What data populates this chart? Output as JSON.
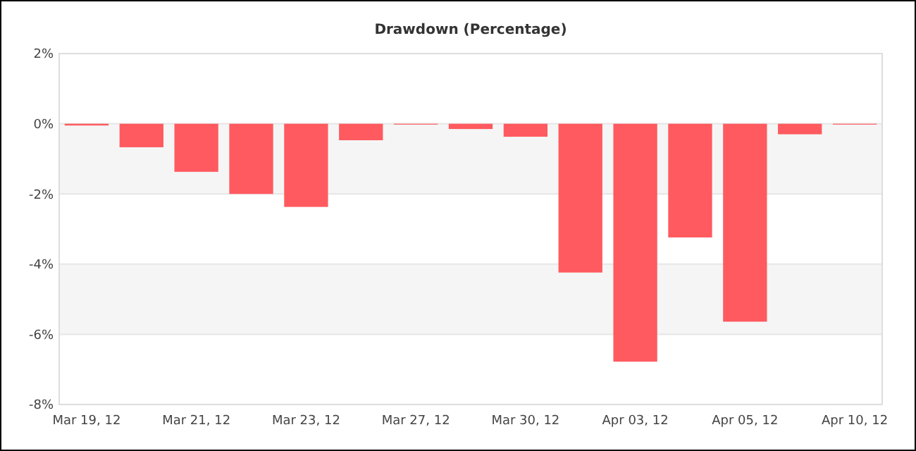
{
  "chart_data": {
    "type": "bar",
    "title": "Drawdown (Percentage)",
    "categories": [
      "Mar 19, 12",
      null,
      "Mar 21, 12",
      null,
      "Mar 23, 12",
      null,
      "Mar 27, 12",
      null,
      "Mar 30, 12",
      null,
      "Apr 03, 12",
      null,
      "Apr 05, 12",
      null,
      "Apr 10, 12"
    ],
    "values": [
      -0.05,
      -0.67,
      -1.37,
      -2.0,
      -2.37,
      -0.47,
      0,
      -0.15,
      -0.37,
      -4.24,
      -6.78,
      -3.24,
      -5.64,
      -0.3,
      0
    ],
    "color": "#ff5a5f",
    "ylim": [
      -8,
      2
    ],
    "yticks": [
      {
        "value": 2,
        "label": "2%"
      },
      {
        "value": 0,
        "label": "0%"
      },
      {
        "value": -2,
        "label": "-2%"
      },
      {
        "value": -4,
        "label": "-4%"
      },
      {
        "value": -6,
        "label": "-6%"
      },
      {
        "value": -8,
        "label": "-8%"
      }
    ],
    "bands": [
      {
        "axis": "y",
        "from": -2,
        "to": 0,
        "color": "#f5f5f5"
      },
      {
        "axis": "y",
        "from": -6,
        "to": -4,
        "color": "#f5f5f5"
      }
    ],
    "grid": "y"
  }
}
